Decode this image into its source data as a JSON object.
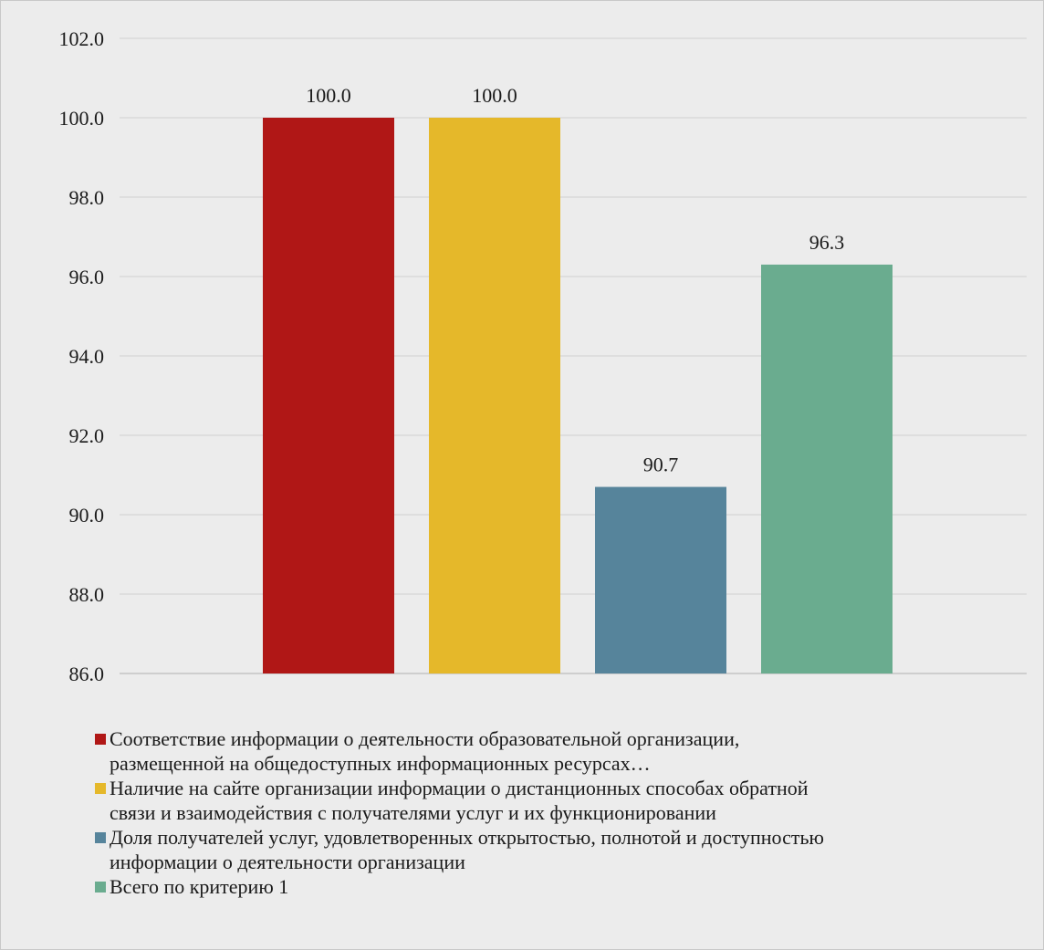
{
  "chart_data": {
    "type": "bar",
    "categories": [
      "Соответствие информации о деятельности образовательной организации, размещенной на общедоступных информационных ресурсах…",
      "Наличие  на сайте организации информации о дистанционных способах обратной связи и взаимодействия с получателями услуг и их функционировании",
      "Доля получателей услуг, удовлетворенных открытостью, полнотой и доступностью информации о деятельности организации",
      "Всего по критерию 1"
    ],
    "values": [
      100.0,
      100.0,
      90.7,
      96.3
    ],
    "data_labels": [
      "100.0",
      "100.0",
      "90.7",
      "96.3"
    ],
    "colors": [
      "#b01716",
      "#e5b82a",
      "#56849b",
      "#6aac8f"
    ],
    "ylim": [
      86.0,
      102.0
    ],
    "y_ticks": [
      "86.0",
      "88.0",
      "90.0",
      "92.0",
      "94.0",
      "96.0",
      "98.0",
      "100.0",
      "102.0"
    ],
    "grid": true,
    "legend_position": "bottom",
    "legend": [
      {
        "line1": "Соответствие информации о деятельности образовательной организации,",
        "line2": "размещенной на общедоступных информационных ресурсах…"
      },
      {
        "line1": "Наличие  на сайте организации информации о дистанционных способах обратной",
        "line2": "связи и взаимодействия с получателями услуг и их функционировании"
      },
      {
        "line1": "Доля получателей услуг, удовлетворенных открытостью, полнотой и доступностью",
        "line2": "информации о деятельности организации"
      },
      {
        "line1": "Всего по критерию 1",
        "line2": ""
      }
    ]
  }
}
